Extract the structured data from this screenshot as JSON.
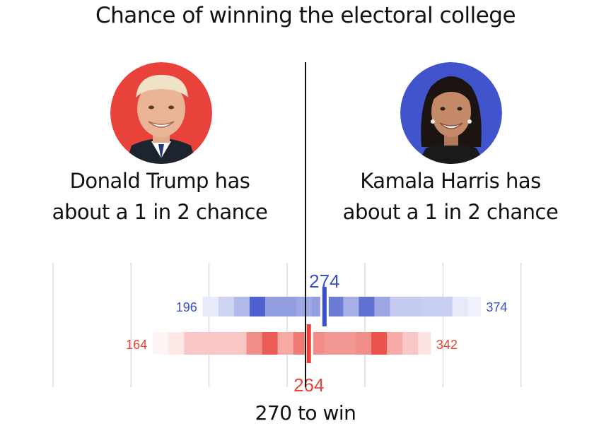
{
  "title": "Chance of winning the electoral college",
  "candidates": [
    {
      "name": "Donald Trump",
      "line1": "Donald Trump has",
      "line2": "about a 1 in 2 chance",
      "ring_color": "#e8423a"
    },
    {
      "name": "Kamala Harris",
      "line1": "Kamala Harris has",
      "line2": "about a 1 in 2 chance",
      "ring_color": "#4254cc"
    }
  ],
  "win_label": "270 to win",
  "chart_data": {
    "type": "heatmap",
    "x_range": [
      100,
      440
    ],
    "gridlines": [
      100,
      150,
      200,
      250,
      300,
      350,
      400
    ],
    "threshold": 270,
    "bin_width": 10,
    "series": [
      {
        "name": "Harris",
        "color": "#3a4fc8",
        "median": 274,
        "min_label": "196",
        "max_label": "374",
        "median_label": "274",
        "bins": [
          {
            "start": 196,
            "end": 206,
            "level": 0.12
          },
          {
            "start": 206,
            "end": 216,
            "level": 0.25
          },
          {
            "start": 216,
            "end": 226,
            "level": 0.4
          },
          {
            "start": 226,
            "end": 236,
            "level": 0.9
          },
          {
            "start": 236,
            "end": 246,
            "level": 0.55
          },
          {
            "start": 246,
            "end": 256,
            "level": 0.55
          },
          {
            "start": 256,
            "end": 266,
            "level": 0.5
          },
          {
            "start": 266,
            "end": 276,
            "level": 0.55
          },
          {
            "start": 276,
            "end": 286,
            "level": 0.75
          },
          {
            "start": 286,
            "end": 296,
            "level": 0.45
          },
          {
            "start": 296,
            "end": 306,
            "level": 0.8
          },
          {
            "start": 306,
            "end": 316,
            "level": 0.5
          },
          {
            "start": 316,
            "end": 326,
            "level": 0.3
          },
          {
            "start": 326,
            "end": 336,
            "level": 0.3
          },
          {
            "start": 336,
            "end": 346,
            "level": 0.28
          },
          {
            "start": 346,
            "end": 356,
            "level": 0.28
          },
          {
            "start": 356,
            "end": 366,
            "level": 0.12
          },
          {
            "start": 366,
            "end": 374,
            "level": 0.08
          }
        ]
      },
      {
        "name": "Trump",
        "color": "#e8423a",
        "median": 264,
        "min_label": "164",
        "max_label": "342",
        "median_label": "264",
        "bins": [
          {
            "start": 164,
            "end": 174,
            "level": 0.06
          },
          {
            "start": 174,
            "end": 184,
            "level": 0.12
          },
          {
            "start": 184,
            "end": 194,
            "level": 0.3
          },
          {
            "start": 194,
            "end": 204,
            "level": 0.3
          },
          {
            "start": 204,
            "end": 214,
            "level": 0.3
          },
          {
            "start": 214,
            "end": 224,
            "level": 0.3
          },
          {
            "start": 224,
            "end": 234,
            "level": 0.6
          },
          {
            "start": 234,
            "end": 244,
            "level": 0.85
          },
          {
            "start": 244,
            "end": 254,
            "level": 0.45
          },
          {
            "start": 254,
            "end": 264,
            "level": 0.7
          },
          {
            "start": 264,
            "end": 274,
            "level": 0.6
          },
          {
            "start": 274,
            "end": 284,
            "level": 0.55
          },
          {
            "start": 284,
            "end": 294,
            "level": 0.55
          },
          {
            "start": 294,
            "end": 304,
            "level": 0.6
          },
          {
            "start": 304,
            "end": 314,
            "level": 0.9
          },
          {
            "start": 314,
            "end": 324,
            "level": 0.45
          },
          {
            "start": 324,
            "end": 334,
            "level": 0.3
          },
          {
            "start": 334,
            "end": 342,
            "level": 0.15
          }
        ]
      }
    ]
  }
}
